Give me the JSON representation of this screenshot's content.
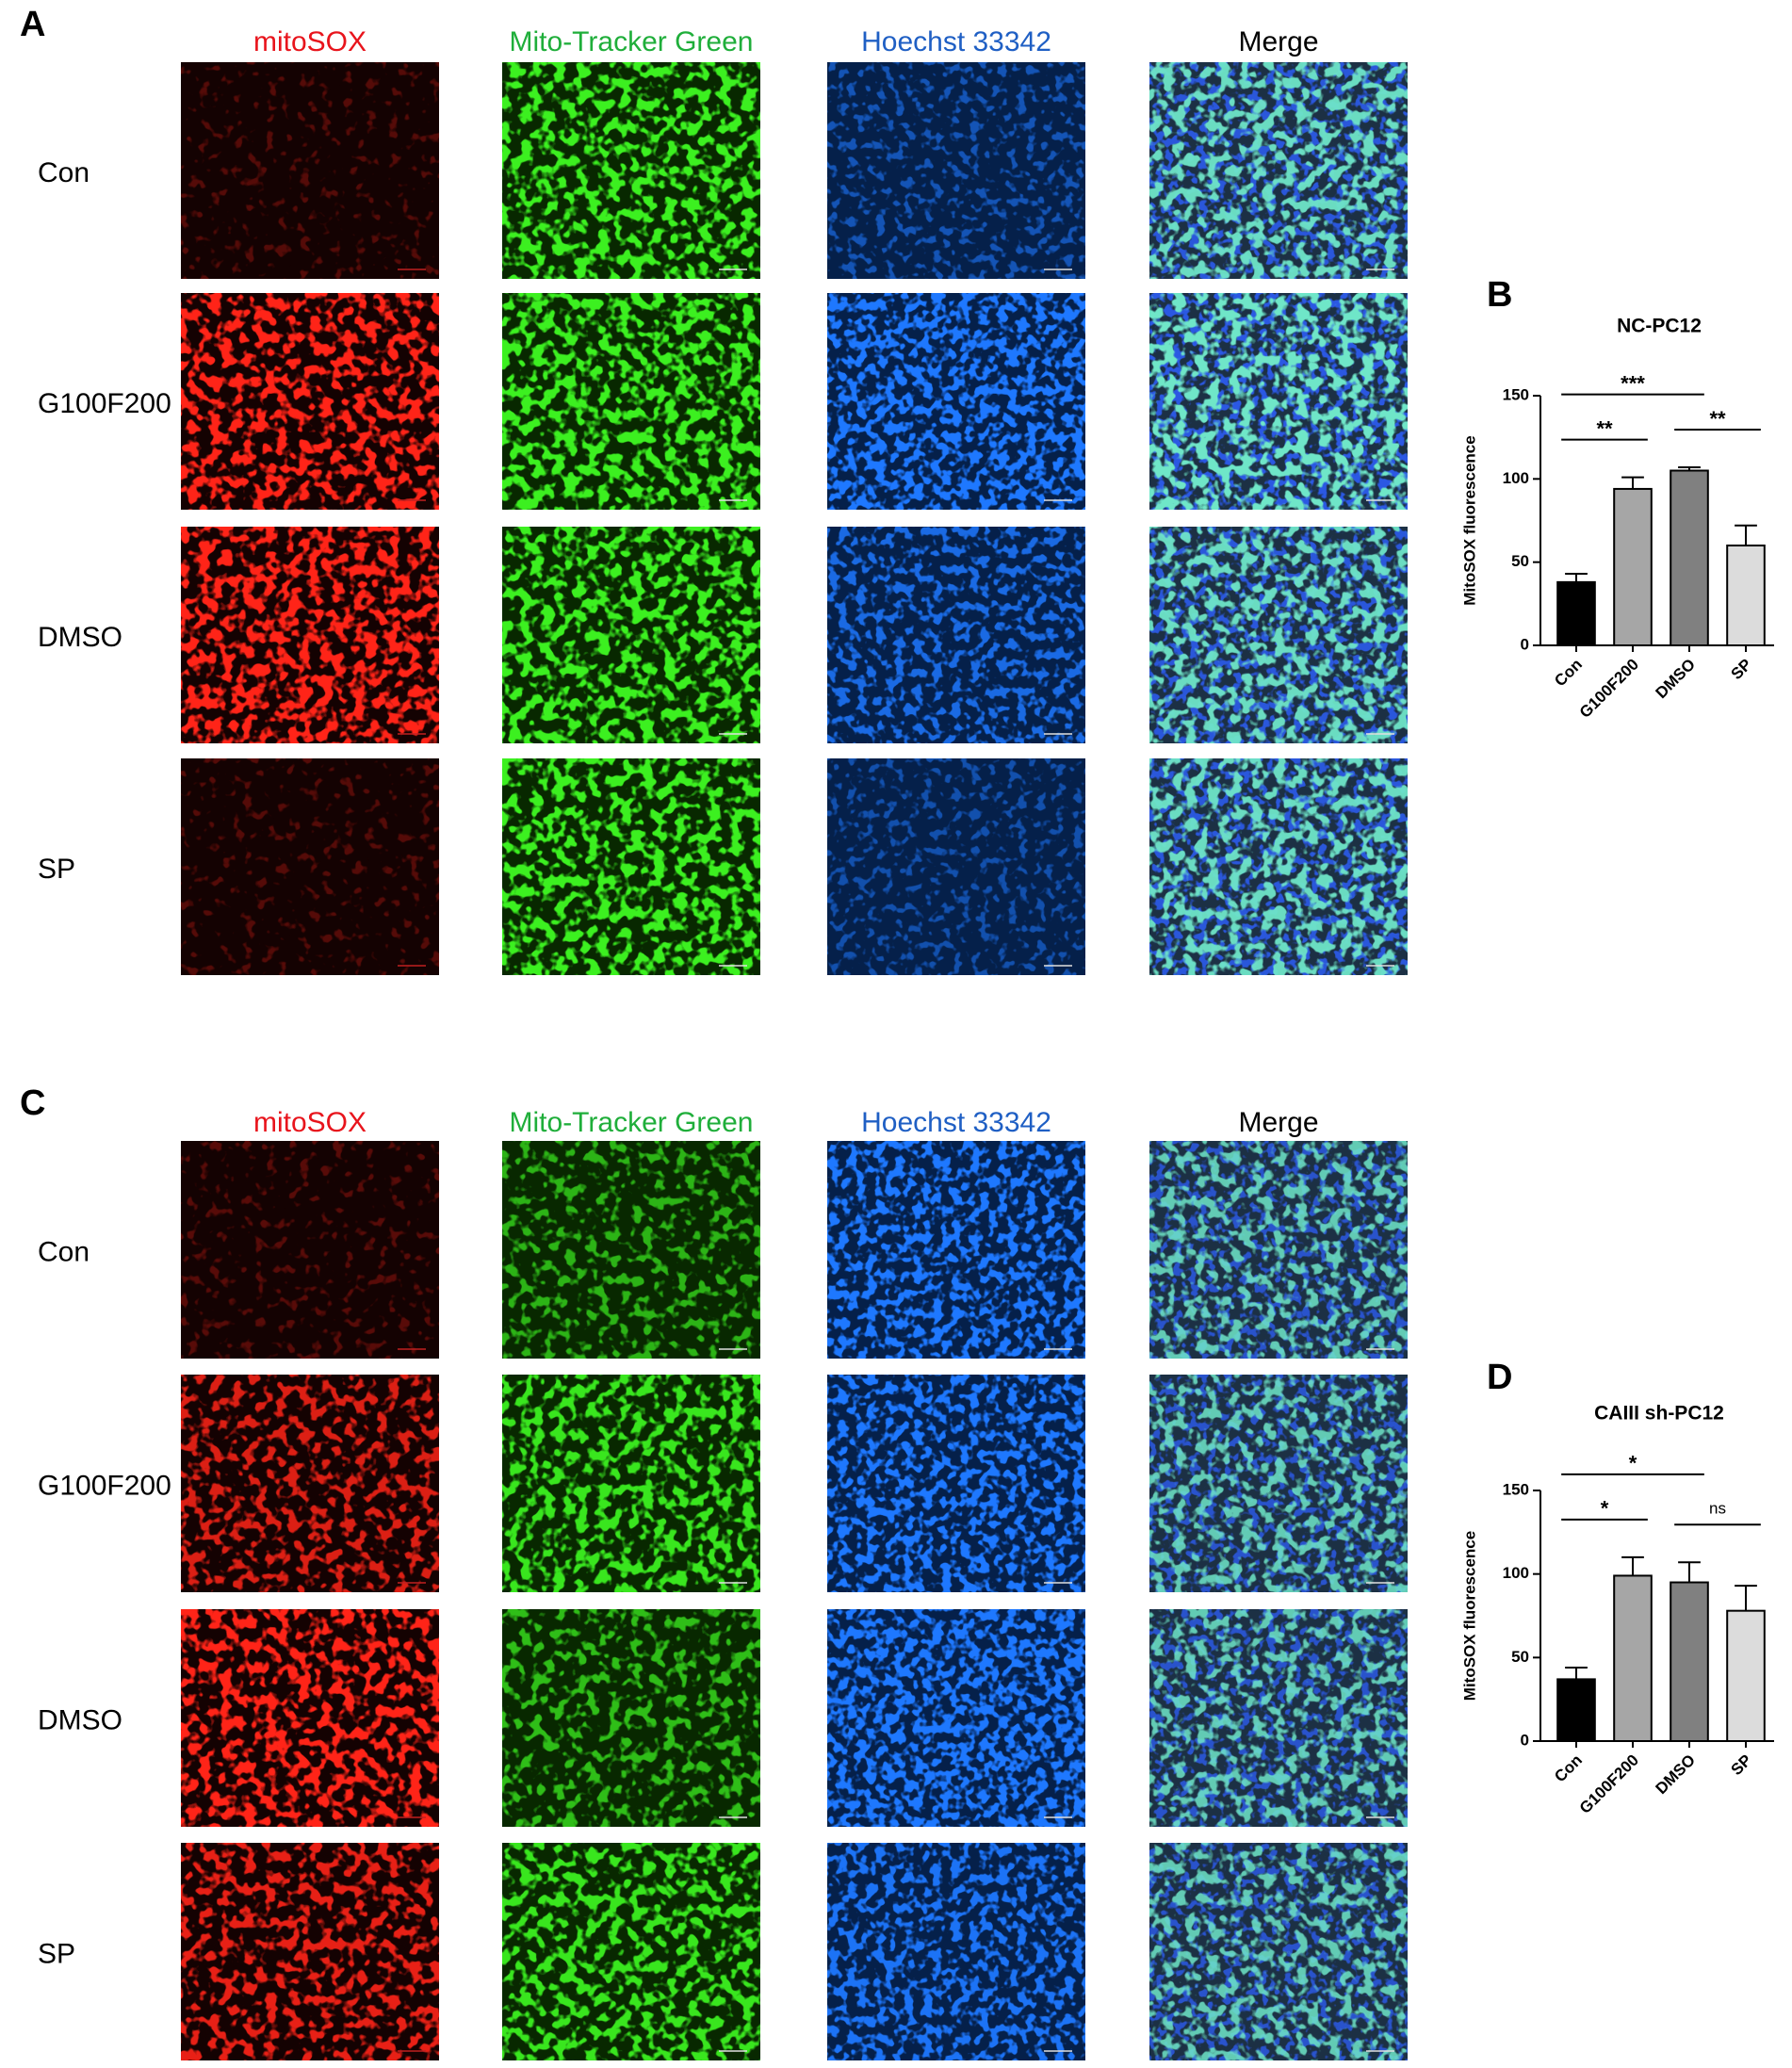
{
  "panels": [
    {
      "label": "A",
      "columns": [
        {
          "text": "mitoSOX",
          "color": "#e8141c"
        },
        {
          "text": "Mito-Tracker Green",
          "color": "#1fae3a"
        },
        {
          "text": "Hoechst 33342",
          "color": "#1f5fc4"
        },
        {
          "text": "Merge",
          "color": "#000000"
        }
      ],
      "rows": [
        "Con",
        "G100F200",
        "DMSO",
        "SP"
      ]
    },
    {
      "label": "C",
      "columns": [
        {
          "text": "mitoSOX",
          "color": "#e8141c"
        },
        {
          "text": "Mito-Tracker Green",
          "color": "#1fae3a"
        },
        {
          "text": "Hoechst 33342",
          "color": "#1f5fc4"
        },
        {
          "text": "Merge",
          "color": "#000000"
        }
      ],
      "rows": [
        "Con",
        "G100F200",
        "DMSO",
        "SP"
      ]
    }
  ],
  "chart_data": [
    {
      "type": "bar",
      "label": "B",
      "title": "NC-PC12",
      "ylabel": "MitoSOX fluorescence",
      "categories": [
        "Con",
        "G100F200",
        "DMSO",
        "SP"
      ],
      "values": [
        38,
        94,
        105,
        60
      ],
      "errors": [
        5,
        7,
        2,
        12
      ],
      "colors": [
        "#000000",
        "#a6a6a6",
        "#808080",
        "#dcdcdc"
      ],
      "ylim": [
        0,
        150
      ],
      "yticks": [
        0,
        50,
        100,
        150
      ],
      "comparisons": [
        {
          "from": 0,
          "to": 1,
          "label": "**"
        },
        {
          "from": 2,
          "to": 3,
          "label": "**"
        },
        {
          "from": 0,
          "to": 2,
          "label": "***"
        }
      ]
    },
    {
      "type": "bar",
      "label": "D",
      "title": "CAIII sh-PC12",
      "ylabel": "MitoSOX fluorescence",
      "categories": [
        "Con",
        "G100F200",
        "DMSO",
        "SP"
      ],
      "values": [
        37,
        99,
        95,
        78
      ],
      "errors": [
        7,
        11,
        12,
        15
      ],
      "colors": [
        "#000000",
        "#a6a6a6",
        "#808080",
        "#dcdcdc"
      ],
      "ylim": [
        0,
        150
      ],
      "yticks": [
        0,
        50,
        100,
        150
      ],
      "comparisons": [
        {
          "from": 0,
          "to": 1,
          "label": "*"
        },
        {
          "from": 2,
          "to": 3,
          "label": "ns"
        },
        {
          "from": 0,
          "to": 2,
          "label": "*"
        }
      ]
    }
  ]
}
